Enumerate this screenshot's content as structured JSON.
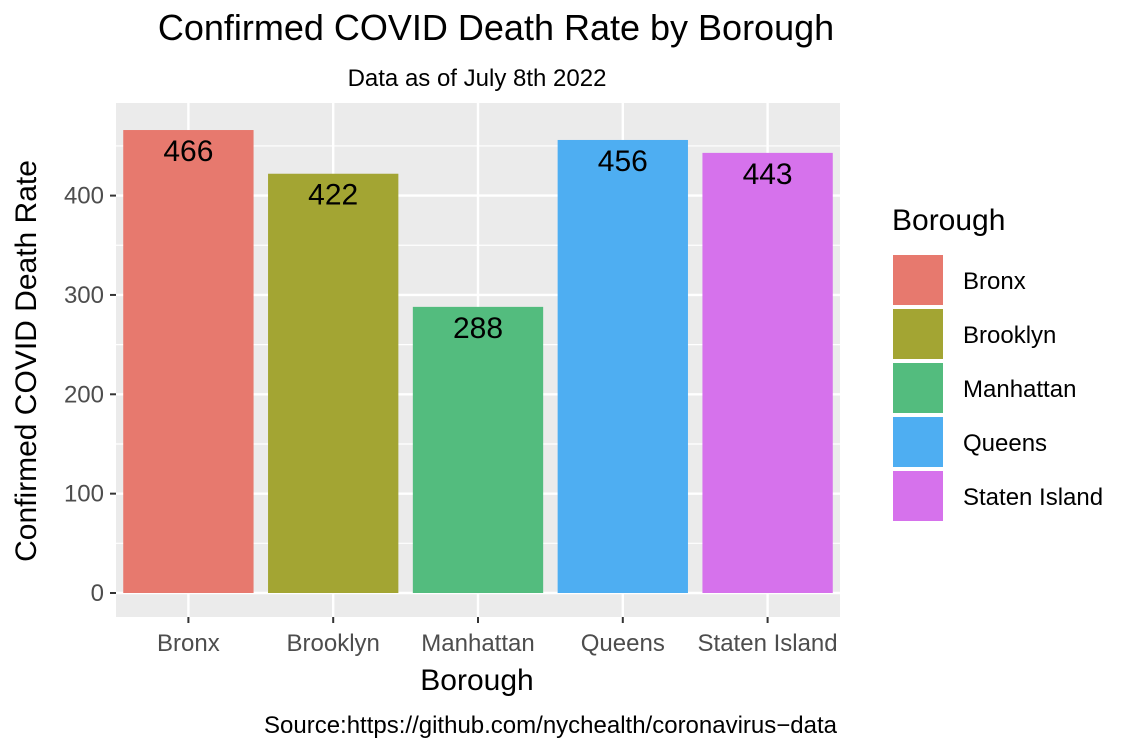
{
  "chart_data": {
    "type": "bar",
    "title": "Confirmed COVID Death Rate by Borough",
    "subtitle": "Data as of July 8th 2022",
    "xlabel": "Borough",
    "ylabel": "Confirmed COVID Death Rate",
    "caption": "Source:https://github.com/nychealth/coronavirus−data",
    "categories": [
      "Bronx",
      "Brooklyn",
      "Manhattan",
      "Queens",
      "Staten Island"
    ],
    "values": [
      466,
      422,
      288,
      456,
      443
    ],
    "data_labels": [
      "466",
      "422",
      "288",
      "456",
      "443"
    ],
    "colors": [
      "#E7796E",
      "#A3A533",
      "#53BC7E",
      "#4EAEF2",
      "#D672EC"
    ],
    "ylim": [
      0,
      500
    ],
    "yticks": [
      0,
      100,
      200,
      300,
      400
    ],
    "ytick_labels": [
      "0",
      "100",
      "200",
      "300",
      "400"
    ],
    "grid": true,
    "panel_background": "#EBEBEB",
    "legend": {
      "title": "Borough",
      "placement": "right",
      "entries": [
        "Bronx",
        "Brooklyn",
        "Manhattan",
        "Queens",
        "Staten Island"
      ]
    }
  }
}
